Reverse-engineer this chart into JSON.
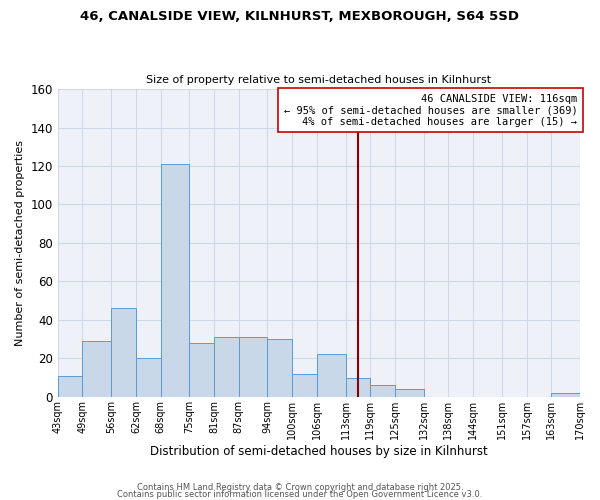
{
  "title": "46, CANALSIDE VIEW, KILNHURST, MEXBOROUGH, S64 5SD",
  "subtitle": "Size of property relative to semi-detached houses in Kilnhurst",
  "xlabel": "Distribution of semi-detached houses by size in Kilnhurst",
  "ylabel": "Number of semi-detached properties",
  "bin_labels": [
    "43sqm",
    "49sqm",
    "56sqm",
    "62sqm",
    "68sqm",
    "75sqm",
    "81sqm",
    "87sqm",
    "94sqm",
    "100sqm",
    "106sqm",
    "113sqm",
    "119sqm",
    "125sqm",
    "132sqm",
    "138sqm",
    "144sqm",
    "151sqm",
    "157sqm",
    "163sqm",
    "170sqm"
  ],
  "bin_edges": [
    43,
    49,
    56,
    62,
    68,
    75,
    81,
    87,
    94,
    100,
    106,
    113,
    119,
    125,
    132,
    138,
    144,
    151,
    157,
    163,
    170
  ],
  "bar_heights": [
    11,
    29,
    46,
    20,
    121,
    28,
    31,
    31,
    30,
    12,
    22,
    10,
    6,
    4,
    0,
    0,
    0,
    0,
    0,
    2
  ],
  "bar_color": "#c8d8e8",
  "bar_edgecolor": "#5b9bd5",
  "grid_color": "#d0d8e8",
  "background_color": "#eef2f8",
  "vline_x": 116,
  "vline_color": "#8b0000",
  "annotation_title": "46 CANALSIDE VIEW: 116sqm",
  "annotation_line1": "← 95% of semi-detached houses are smaller (369)",
  "annotation_line2": "4% of semi-detached houses are larger (15) →",
  "ylim": [
    0,
    160
  ],
  "yticks": [
    0,
    20,
    40,
    60,
    80,
    100,
    120,
    140,
    160
  ],
  "footer1": "Contains HM Land Registry data © Crown copyright and database right 2025.",
  "footer2": "Contains public sector information licensed under the Open Government Licence v3.0."
}
